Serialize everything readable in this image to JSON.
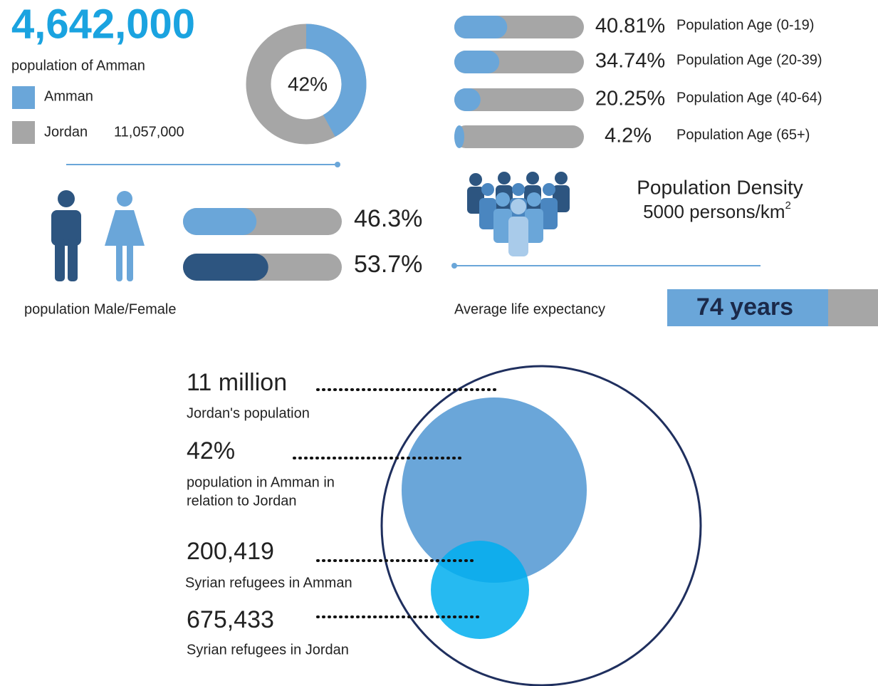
{
  "header": {
    "total": "4,642,000",
    "subtitle": "population of Amman"
  },
  "donut": {
    "value": 42,
    "value_label": "42%",
    "legend": [
      {
        "name": "Amman",
        "color": "#6aa6d9"
      },
      {
        "name": "Jordan",
        "color": "#a6a6a6",
        "extra": "11,057,000"
      }
    ]
  },
  "age_bars": {
    "names": [
      "Population Age (0-19)",
      "Population Age (20-39)",
      "Population Age (40-64)",
      "Population Age (65+)"
    ],
    "values": [
      40.81,
      34.74,
      20.25,
      4.2
    ],
    "value_labels": [
      "40.81%",
      "34.74%",
      "20.25%",
      "4.2%"
    ],
    "color": "#6aa6d9",
    "track": "#a6a6a6"
  },
  "gender": {
    "caption": "population Male/Female",
    "values": [
      46.3,
      53.7
    ],
    "value_labels": [
      "46.3%",
      "53.7%"
    ],
    "colors": [
      "#6aa6d9",
      "#2d5580"
    ]
  },
  "density": {
    "title": "Population Density",
    "text": "5000 persons/km",
    "sup": "2"
  },
  "life": {
    "caption": "Average life expectancy",
    "label": "74 years"
  },
  "facts": [
    {
      "value": "11 million",
      "caption": "Jordan's population"
    },
    {
      "value": "42%",
      "caption": [
        "population in Amman in",
        "relation to Jordan"
      ]
    },
    {
      "value": "200,419",
      "caption": "Syrian refugees in Amman"
    },
    {
      "value": "675,433",
      "caption": "Syrian refugees in Jordan"
    }
  ]
}
